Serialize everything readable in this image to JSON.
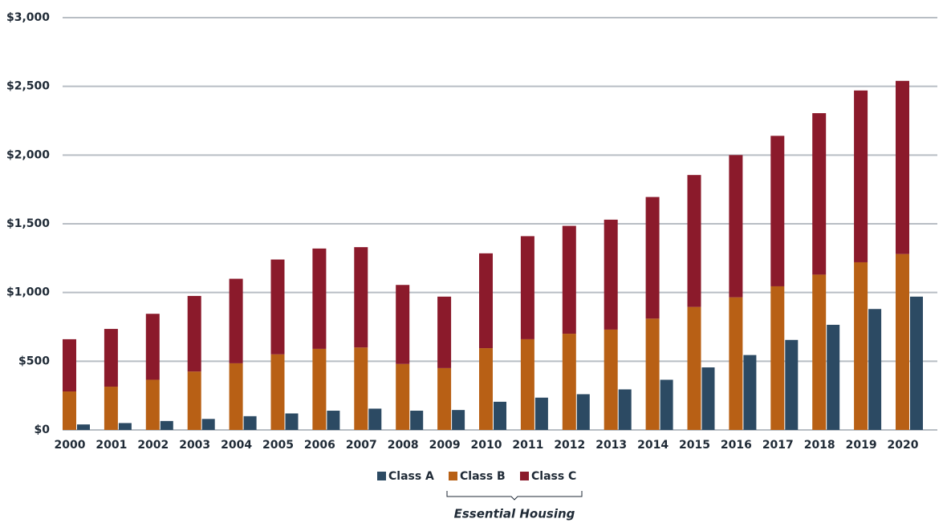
{
  "chart_data": {
    "type": "bar",
    "stacked": true,
    "categories": [
      "2000",
      "2001",
      "2002",
      "2003",
      "2004",
      "2005",
      "2006",
      "2007",
      "2008",
      "2009",
      "2010",
      "2011",
      "2012",
      "2013",
      "2014",
      "2015",
      "2016",
      "2017",
      "2018",
      "2019",
      "2020"
    ],
    "series": [
      {
        "name": "Class A",
        "color": "#2c4a63",
        "stack": "a",
        "values": [
          40,
          50,
          65,
          80,
          100,
          120,
          140,
          155,
          140,
          145,
          205,
          235,
          260,
          295,
          365,
          455,
          545,
          655,
          765,
          880,
          970
        ]
      },
      {
        "name": "Class B",
        "color": "#b86015",
        "stack": "bc",
        "values": [
          280,
          315,
          365,
          425,
          485,
          550,
          590,
          600,
          480,
          450,
          595,
          660,
          700,
          730,
          810,
          895,
          965,
          1045,
          1130,
          1220,
          1280
        ]
      },
      {
        "name": "Class C",
        "color": "#8b1a2b",
        "stack": "bc",
        "values": [
          380,
          420,
          480,
          550,
          615,
          690,
          730,
          730,
          575,
          520,
          690,
          750,
          785,
          800,
          885,
          960,
          1035,
          1095,
          1175,
          1250,
          1260
        ]
      }
    ],
    "ylim": [
      0,
      3000
    ],
    "yticks": [
      {
        "value": 0,
        "label": "$0"
      },
      {
        "value": 500,
        "label": "$500"
      },
      {
        "value": 1000,
        "label": "$1,000"
      },
      {
        "value": 1500,
        "label": "$1,500"
      },
      {
        "value": 2000,
        "label": "$2,000"
      },
      {
        "value": 2500,
        "label": "$2,500"
      },
      {
        "value": 3000,
        "label": "$3,000"
      }
    ],
    "grid": true,
    "legend": "bottom",
    "annotation": "Essential Housing"
  }
}
